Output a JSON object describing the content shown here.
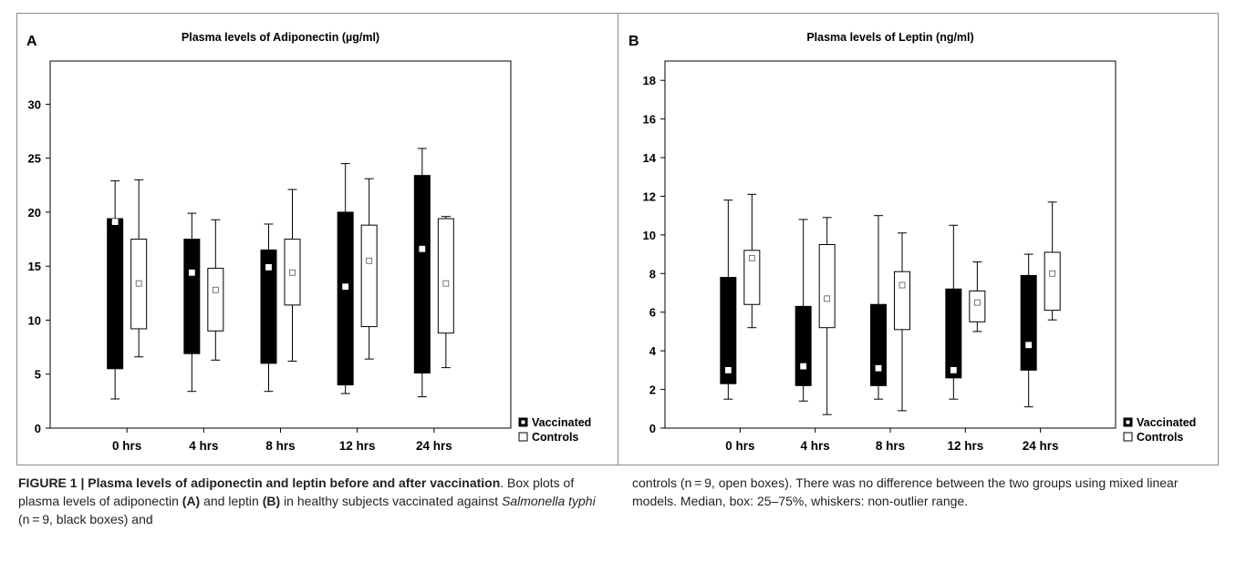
{
  "chart_data": [
    {
      "type": "box",
      "panel_label": "A",
      "title": "Plasma levels of Adiponectin (µg/ml)",
      "categories": [
        "0 hrs",
        "4 hrs",
        "8 hrs",
        "12 hrs",
        "24 hrs"
      ],
      "ylim": [
        0,
        34
      ],
      "yticks": [
        0,
        5,
        10,
        15,
        20,
        25,
        30
      ],
      "series": [
        {
          "name": "Vaccinated",
          "fill": "#000000",
          "median_color": "#ffffff",
          "boxes": [
            {
              "min": 2.7,
              "q1": 5.5,
              "median": 19.1,
              "q3": 19.4,
              "max": 22.9
            },
            {
              "min": 3.4,
              "q1": 6.9,
              "median": 14.4,
              "q3": 17.5,
              "max": 19.9
            },
            {
              "min": 3.4,
              "q1": 6.0,
              "median": 14.9,
              "q3": 16.5,
              "max": 18.9
            },
            {
              "min": 3.2,
              "q1": 4.0,
              "median": 13.1,
              "q3": 20.0,
              "max": 24.5
            },
            {
              "min": 2.9,
              "q1": 5.1,
              "median": 16.6,
              "q3": 23.4,
              "max": 25.9
            }
          ]
        },
        {
          "name": "Controls",
          "fill": "#ffffff",
          "median_color": "#ffffff",
          "boxes": [
            {
              "min": 6.6,
              "q1": 9.2,
              "median": 13.4,
              "q3": 17.5,
              "max": 23.0
            },
            {
              "min": 6.3,
              "q1": 9.0,
              "median": 12.8,
              "q3": 14.8,
              "max": 19.3
            },
            {
              "min": 6.2,
              "q1": 11.4,
              "median": 14.4,
              "q3": 17.5,
              "max": 22.1
            },
            {
              "min": 6.4,
              "q1": 9.4,
              "median": 15.5,
              "q3": 18.8,
              "max": 23.1
            },
            {
              "min": 5.6,
              "q1": 8.8,
              "median": 13.4,
              "q3": 19.4,
              "max": 19.6
            }
          ]
        }
      ],
      "legend": [
        "Vaccinated",
        "Controls"
      ],
      "legend_position": "bottom-right",
      "grid": false
    },
    {
      "type": "box",
      "panel_label": "B",
      "title": "Plasma levels of Leptin (ng/ml)",
      "categories": [
        "0 hrs",
        "4 hrs",
        "8 hrs",
        "12 hrs",
        "24 hrs"
      ],
      "ylim": [
        0,
        19
      ],
      "yticks": [
        0,
        2,
        4,
        6,
        8,
        10,
        12,
        14,
        16,
        18
      ],
      "series": [
        {
          "name": "Vaccinated",
          "fill": "#000000",
          "median_color": "#ffffff",
          "boxes": [
            {
              "min": 1.5,
              "q1": 2.3,
              "median": 3.0,
              "q3": 7.8,
              "max": 11.8
            },
            {
              "min": 1.4,
              "q1": 2.2,
              "median": 3.2,
              "q3": 6.3,
              "max": 10.8
            },
            {
              "min": 1.5,
              "q1": 2.2,
              "median": 3.1,
              "q3": 6.4,
              "max": 11.0
            },
            {
              "min": 1.5,
              "q1": 2.6,
              "median": 3.0,
              "q3": 7.2,
              "max": 10.5
            },
            {
              "min": 1.1,
              "q1": 3.0,
              "median": 4.3,
              "q3": 7.9,
              "max": 9.0
            }
          ]
        },
        {
          "name": "Controls",
          "fill": "#ffffff",
          "median_color": "#ffffff",
          "boxes": [
            {
              "min": 5.2,
              "q1": 6.4,
              "median": 8.8,
              "q3": 9.2,
              "max": 12.1
            },
            {
              "min": 0.7,
              "q1": 5.2,
              "median": 6.7,
              "q3": 9.5,
              "max": 10.9
            },
            {
              "min": 0.9,
              "q1": 5.1,
              "median": 7.4,
              "q3": 8.1,
              "max": 10.1
            },
            {
              "min": 5.0,
              "q1": 5.5,
              "median": 6.5,
              "q3": 7.1,
              "max": 8.6
            },
            {
              "min": 5.6,
              "q1": 6.1,
              "median": 8.0,
              "q3": 9.1,
              "max": 11.7
            }
          ]
        }
      ],
      "legend": [
        "Vaccinated",
        "Controls"
      ],
      "legend_position": "bottom-right",
      "grid": false
    }
  ],
  "caption": {
    "fig_label": "FIGURE 1 | Plasma levels of adiponectin and leptin before and after vaccination",
    "part1_a": ". Box plots of plasma levels of adiponectin ",
    "panel_a": "(A)",
    "part1_b": " and leptin ",
    "panel_b": "(B)",
    "part1_c": " in healthy subjects vaccinated against ",
    "species": "Salmonella typhi",
    "part1_d": " (n = 9, black boxes) and",
    "part2": "controls (n = 9, open boxes). There was no difference between the two groups using mixed linear models. Median, box: 25–75%, whiskers: non-outlier range."
  }
}
